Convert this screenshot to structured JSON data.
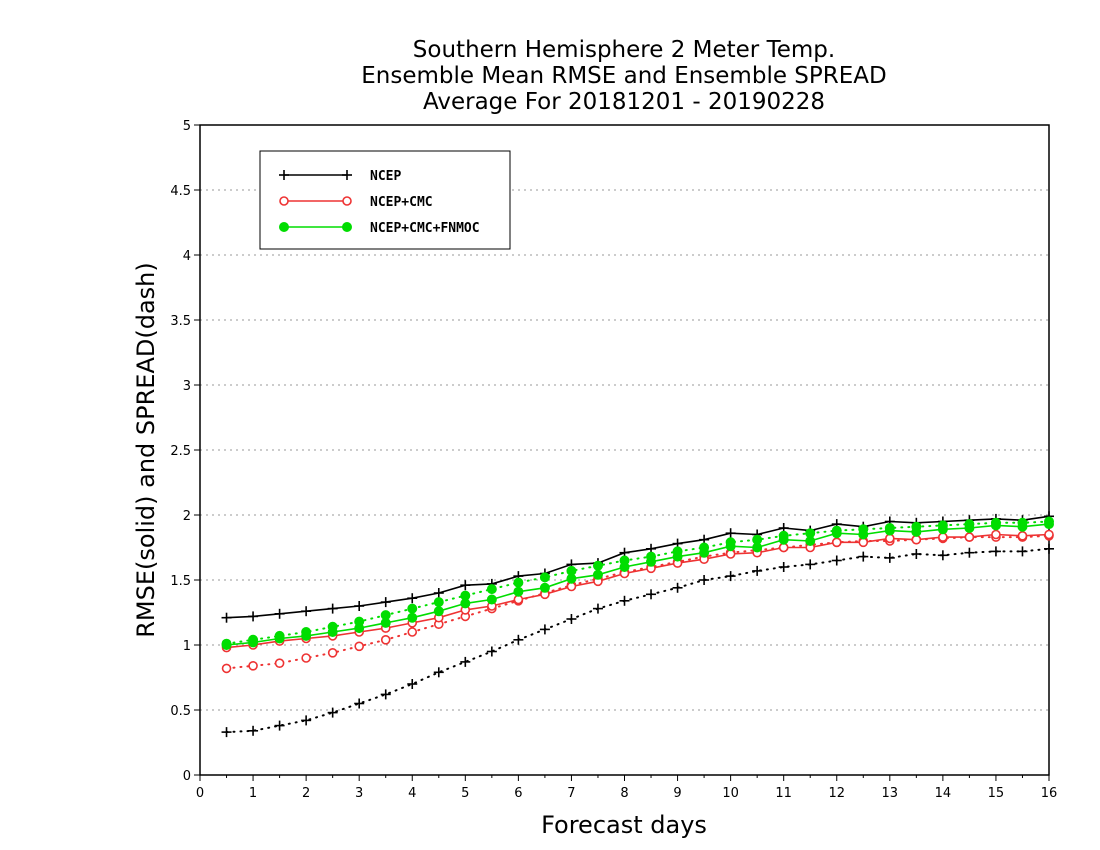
{
  "chart_data": {
    "type": "line",
    "title_lines": [
      "Southern Hemisphere 2 Meter Temp.",
      "Ensemble Mean RMSE and Ensemble SPREAD",
      "Average For 20181201 - 20190228"
    ],
    "xlabel": "Forecast days",
    "ylabel": "RMSE(solid) and SPREAD(dash)",
    "xlim": [
      0,
      16
    ],
    "ylim": [
      0,
      5
    ],
    "xticks": [
      "0",
      "1",
      "2",
      "3",
      "4",
      "5",
      "6",
      "7",
      "8",
      "9",
      "10",
      "11",
      "12",
      "13",
      "14",
      "15",
      "16"
    ],
    "yticks": [
      "0",
      "0.5",
      "1",
      "1.5",
      "2",
      "2.5",
      "3",
      "3.5",
      "4",
      "4.5",
      "5"
    ],
    "grid": "horizontal dotted",
    "legend_position": "top-left",
    "x": [
      0.5,
      1,
      1.5,
      2,
      2.5,
      3,
      3.5,
      4,
      4.5,
      5,
      5.5,
      6,
      6.5,
      7,
      7.5,
      8,
      8.5,
      9,
      9.5,
      10,
      10.5,
      11,
      11.5,
      12,
      12.5,
      13,
      13.5,
      14,
      14.5,
      15,
      15.5,
      16
    ],
    "series": [
      {
        "name": "NCEP",
        "color": "#000000",
        "marker": "plus",
        "rmse": [
          1.21,
          1.22,
          1.24,
          1.26,
          1.28,
          1.3,
          1.33,
          1.36,
          1.4,
          1.46,
          1.47,
          1.53,
          1.55,
          1.62,
          1.63,
          1.71,
          1.74,
          1.78,
          1.81,
          1.86,
          1.85,
          1.9,
          1.88,
          1.93,
          1.91,
          1.95,
          1.94,
          1.95,
          1.96,
          1.97,
          1.96,
          1.99
        ],
        "spread": [
          0.33,
          0.34,
          0.38,
          0.42,
          0.48,
          0.55,
          0.62,
          0.7,
          0.79,
          0.87,
          0.95,
          1.04,
          1.12,
          1.2,
          1.28,
          1.34,
          1.39,
          1.44,
          1.5,
          1.53,
          1.57,
          1.6,
          1.62,
          1.65,
          1.68,
          1.67,
          1.7,
          1.69,
          1.71,
          1.72,
          1.72,
          1.74
        ]
      },
      {
        "name": "NCEP+CMC",
        "color": "#ee3333",
        "marker": "open-circle",
        "rmse": [
          0.98,
          1.0,
          1.03,
          1.05,
          1.07,
          1.1,
          1.13,
          1.17,
          1.21,
          1.27,
          1.3,
          1.35,
          1.39,
          1.45,
          1.49,
          1.55,
          1.59,
          1.63,
          1.66,
          1.7,
          1.71,
          1.75,
          1.75,
          1.79,
          1.79,
          1.82,
          1.81,
          1.83,
          1.83,
          1.85,
          1.84,
          1.85
        ],
        "spread": [
          0.82,
          0.84,
          0.86,
          0.9,
          0.94,
          0.99,
          1.04,
          1.1,
          1.16,
          1.22,
          1.28,
          1.34,
          1.4,
          1.46,
          1.51,
          1.56,
          1.6,
          1.64,
          1.68,
          1.71,
          1.73,
          1.75,
          1.77,
          1.79,
          1.8,
          1.8,
          1.81,
          1.82,
          1.83,
          1.83,
          1.83,
          1.84
        ]
      },
      {
        "name": "NCEP+CMC+FNMOC",
        "color": "#00dd00",
        "marker": "filled-circle",
        "rmse": [
          1.0,
          1.02,
          1.05,
          1.07,
          1.1,
          1.13,
          1.17,
          1.21,
          1.26,
          1.32,
          1.35,
          1.41,
          1.44,
          1.51,
          1.54,
          1.6,
          1.64,
          1.68,
          1.71,
          1.76,
          1.75,
          1.81,
          1.8,
          1.86,
          1.85,
          1.88,
          1.87,
          1.89,
          1.9,
          1.92,
          1.91,
          1.93
        ],
        "spread": [
          1.01,
          1.04,
          1.07,
          1.1,
          1.14,
          1.18,
          1.23,
          1.28,
          1.33,
          1.38,
          1.43,
          1.48,
          1.52,
          1.57,
          1.61,
          1.65,
          1.68,
          1.72,
          1.75,
          1.79,
          1.81,
          1.84,
          1.86,
          1.88,
          1.89,
          1.9,
          1.91,
          1.92,
          1.93,
          1.94,
          1.94,
          1.95
        ]
      }
    ]
  }
}
